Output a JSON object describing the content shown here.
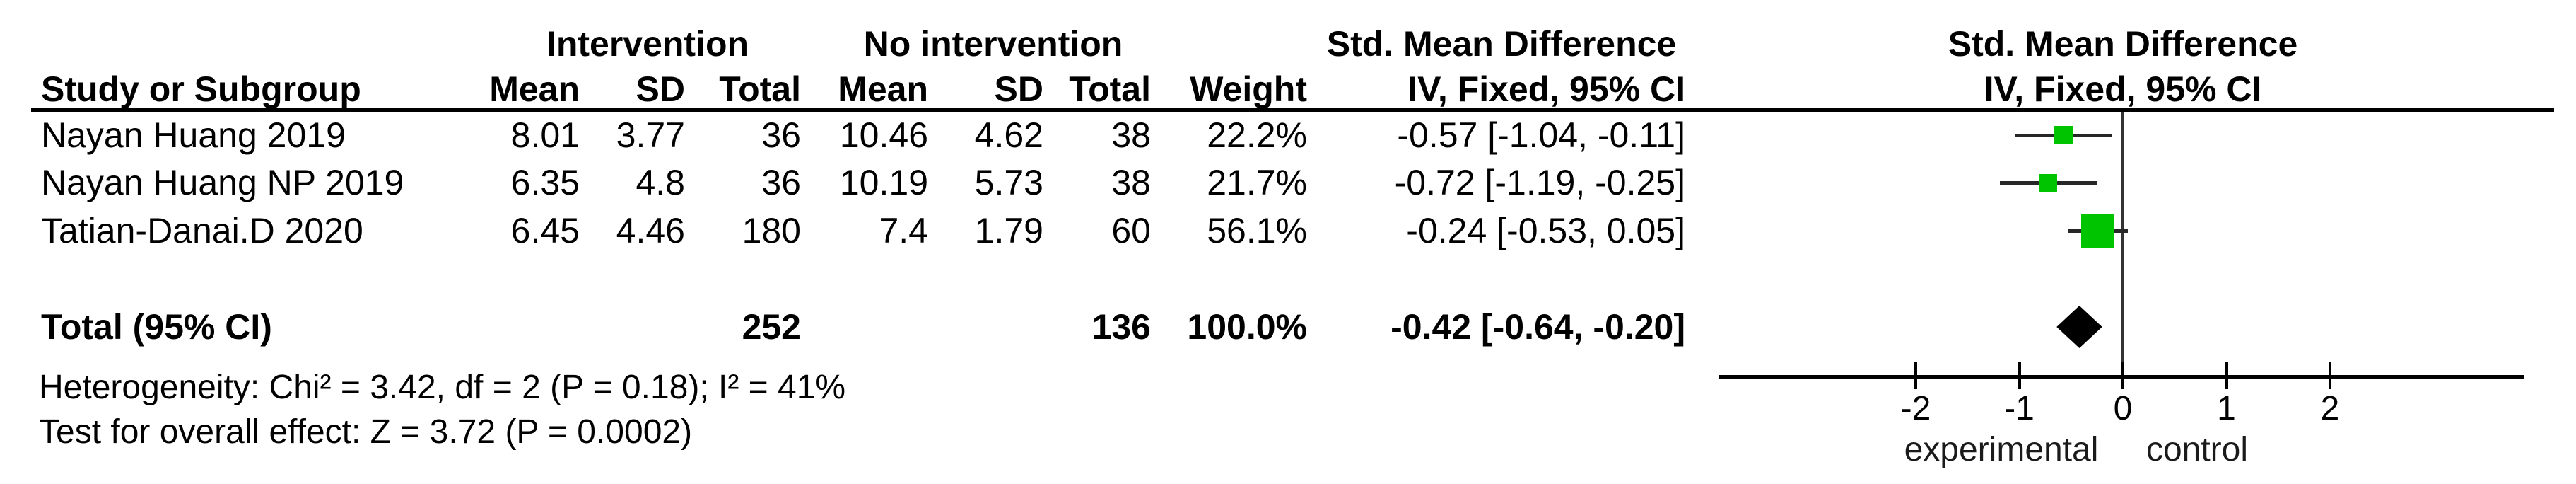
{
  "table": {
    "group_headers": {
      "intervention": "Intervention",
      "no_intervention": "No intervention",
      "smd_text": "Std. Mean Difference",
      "smd_plot": "Std. Mean Difference"
    },
    "columns": {
      "study": "Study or Subgroup",
      "mean1": "Mean",
      "sd1": "SD",
      "total1": "Total",
      "mean2": "Mean",
      "sd2": "SD",
      "total2": "Total",
      "weight": "Weight",
      "ci_text": "IV, Fixed, 95% CI",
      "ci_plot": "IV, Fixed, 95% CI"
    },
    "rows": [
      {
        "study": "Nayan Huang 2019",
        "mean1": "8.01",
        "sd1": "3.77",
        "total1": "36",
        "mean2": "10.46",
        "sd2": "4.62",
        "total2": "38",
        "weight": "22.2%",
        "ci": "-0.57 [-1.04, -0.11]"
      },
      {
        "study": "Nayan Huang NP 2019",
        "mean1": "6.35",
        "sd1": "4.8",
        "total1": "36",
        "mean2": "10.19",
        "sd2": "5.73",
        "total2": "38",
        "weight": "21.7%",
        "ci": "-0.72 [-1.19, -0.25]"
      },
      {
        "study": "Tatian-Danai.D 2020",
        "mean1": "6.45",
        "sd1": "4.46",
        "total1": "180",
        "mean2": "7.4",
        "sd2": "1.79",
        "total2": "60",
        "weight": "56.1%",
        "ci": "-0.24 [-0.53, 0.05]"
      }
    ],
    "total_row": {
      "label": "Total (95% CI)",
      "total1": "252",
      "total2": "136",
      "weight": "100.0%",
      "ci": "-0.42 [-0.64, -0.20]"
    },
    "footer": {
      "heterogeneity": "Heterogeneity: Chi² = 3.42, df = 2 (P = 0.18); I² = 41%",
      "overall_effect": "Test for overall effect: Z = 3.72 (P = 0.0002)"
    }
  },
  "chart_data": {
    "type": "forest",
    "effect_measure": "Std. Mean Difference",
    "method": "IV, Fixed, 95% CI",
    "studies": [
      {
        "label": "Nayan Huang 2019",
        "smd": -0.57,
        "ci_low": -1.04,
        "ci_high": -0.11,
        "weight_pct": 22.2
      },
      {
        "label": "Nayan Huang NP 2019",
        "smd": -0.72,
        "ci_low": -1.19,
        "ci_high": -0.25,
        "weight_pct": 21.7
      },
      {
        "label": "Tatian-Danai.D 2020",
        "smd": -0.24,
        "ci_low": -0.53,
        "ci_high": 0.05,
        "weight_pct": 56.1
      }
    ],
    "total": {
      "label": "Total (95% CI)",
      "smd": -0.42,
      "ci_low": -0.64,
      "ci_high": -0.2,
      "weight_pct": 100.0
    },
    "axis": {
      "ticks": [
        -2,
        -1,
        0,
        1,
        2
      ],
      "xmin": -3.9,
      "xmax": 3.87,
      "left_label": "experimental",
      "right_label": "control",
      "grid": false
    },
    "marker_color": "#00c400",
    "ci_line_color": "#272727",
    "diamond_color": "#000000"
  }
}
